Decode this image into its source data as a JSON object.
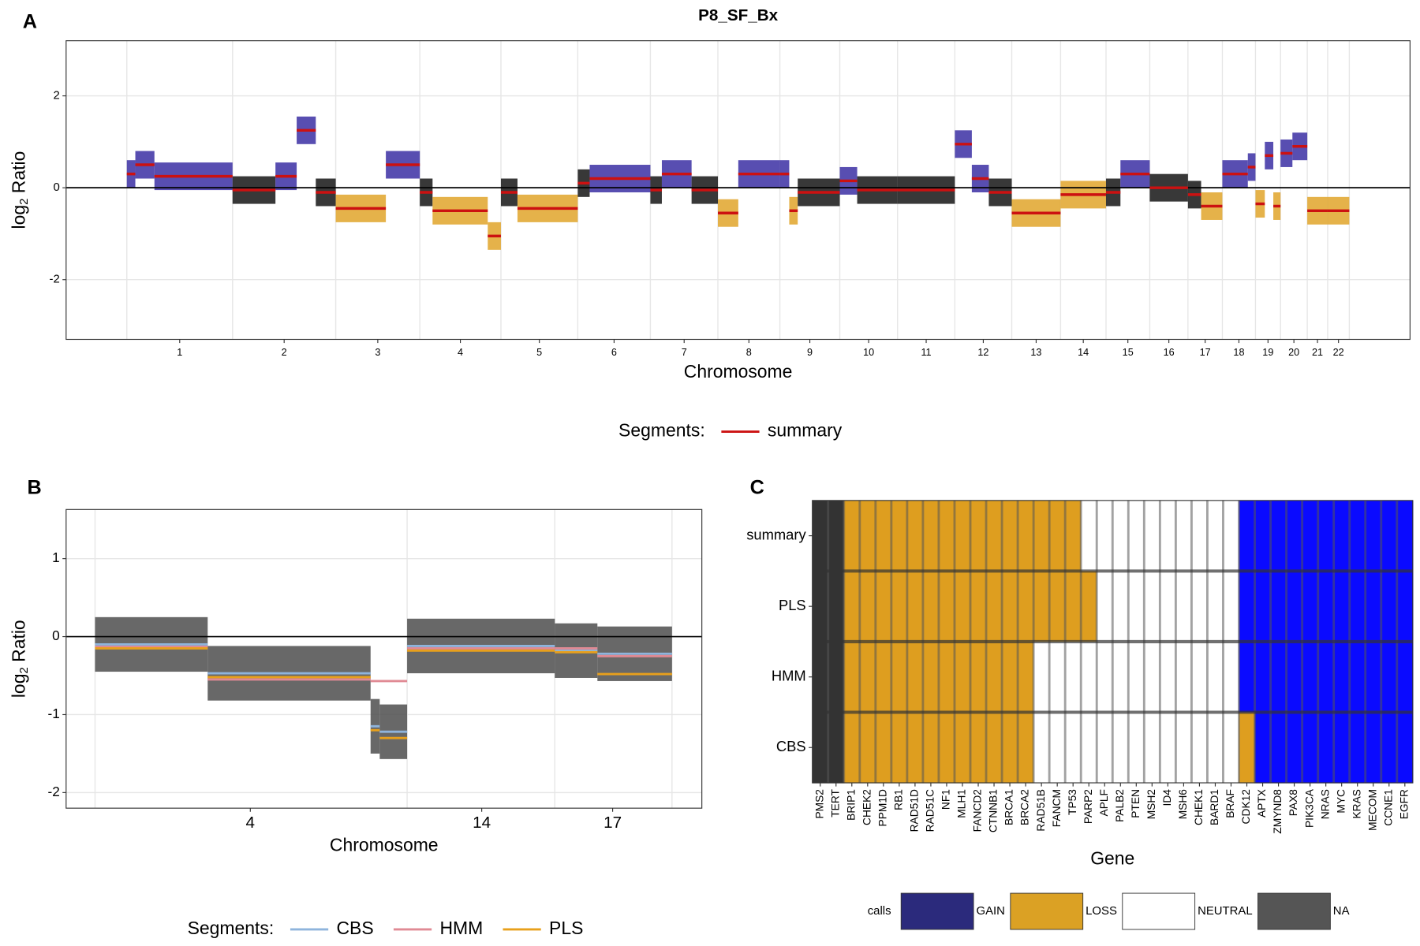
{
  "chart_data": [
    {
      "panel_label": "A",
      "type": "segments",
      "title": "P8_SF_Bx",
      "xlabel": "Chromosome",
      "ylabel": [
        "log",
        "2",
        " Ratio"
      ],
      "xlim": [
        -143,
        3022
      ],
      "ylim": [
        -3.3,
        3.2
      ],
      "yticks": [
        -2,
        0,
        2
      ],
      "hline": 0,
      "grid": true,
      "xticks": [
        {
          "value": 124.5,
          "label": "1"
        },
        {
          "value": 370.5,
          "label": "2"
        },
        {
          "value": 591,
          "label": "3"
        },
        {
          "value": 785.5,
          "label": "4"
        },
        {
          "value": 971.5,
          "label": "5"
        },
        {
          "value": 1147.5,
          "label": "6"
        },
        {
          "value": 1312.5,
          "label": "7"
        },
        {
          "value": 1465,
          "label": "8"
        },
        {
          "value": 1608.5,
          "label": "9"
        },
        {
          "value": 1747,
          "label": "10"
        },
        {
          "value": 1882.5,
          "label": "11"
        },
        {
          "value": 2017,
          "label": "12"
        },
        {
          "value": 2141.5,
          "label": "13"
        },
        {
          "value": 2252.5,
          "label": "14"
        },
        {
          "value": 2357.5,
          "label": "15"
        },
        {
          "value": 2454,
          "label": "16"
        },
        {
          "value": 2539.5,
          "label": "17"
        },
        {
          "value": 2619,
          "label": "18"
        },
        {
          "value": 2687.5,
          "label": "19"
        },
        {
          "value": 2748.5,
          "label": "20"
        },
        {
          "value": 2804,
          "label": "21"
        },
        {
          "value": 2853.5,
          "label": "22"
        }
      ],
      "x_boundaries": [
        0,
        249,
        492,
        690,
        881,
        1062,
        1233,
        1392,
        1538,
        1679,
        1815,
        1950,
        2084,
        2199,
        2306,
        2409,
        2499,
        2580,
        2658,
        2717,
        2780,
        2828,
        2879
      ],
      "point_colors": {
        "GAIN": "#3b2fa3",
        "LOSS": "#e0a52a",
        "NEUTRAL": "#151515"
      },
      "legend_title": "Segments:",
      "legend_position": "bottom",
      "series": [
        {
          "name": "summary",
          "color": "#cc1111",
          "segments": [
            {
              "start": 0,
              "end": 20,
              "value": 0.3,
              "call": "GAIN"
            },
            {
              "start": 20,
              "end": 65,
              "value": 0.5,
              "call": "GAIN"
            },
            {
              "start": 65,
              "end": 249,
              "value": 0.25,
              "call": "GAIN"
            },
            {
              "start": 249,
              "end": 350,
              "value": -0.05,
              "call": "NEUTRAL"
            },
            {
              "start": 350,
              "end": 400,
              "value": 0.25,
              "call": "GAIN"
            },
            {
              "start": 400,
              "end": 445,
              "value": 1.25,
              "call": "GAIN"
            },
            {
              "start": 445,
              "end": 492,
              "value": -0.1,
              "call": "NEUTRAL"
            },
            {
              "start": 492,
              "end": 610,
              "value": -0.45,
              "call": "LOSS"
            },
            {
              "start": 610,
              "end": 690,
              "value": 0.5,
              "call": "GAIN"
            },
            {
              "start": 690,
              "end": 720,
              "value": -0.1,
              "call": "NEUTRAL"
            },
            {
              "start": 720,
              "end": 850,
              "value": -0.5,
              "call": "LOSS"
            },
            {
              "start": 850,
              "end": 881,
              "value": -1.05,
              "call": "LOSS"
            },
            {
              "start": 881,
              "end": 920,
              "value": -0.1,
              "call": "NEUTRAL"
            },
            {
              "start": 920,
              "end": 1062,
              "value": -0.45,
              "call": "LOSS"
            },
            {
              "start": 1062,
              "end": 1090,
              "value": 0.1,
              "call": "NEUTRAL"
            },
            {
              "start": 1090,
              "end": 1233,
              "value": 0.2,
              "call": "GAIN"
            },
            {
              "start": 1233,
              "end": 1260,
              "value": -0.05,
              "call": "NEUTRAL"
            },
            {
              "start": 1260,
              "end": 1330,
              "value": 0.3,
              "call": "GAIN"
            },
            {
              "start": 1330,
              "end": 1392,
              "value": -0.05,
              "call": "NEUTRAL"
            },
            {
              "start": 1392,
              "end": 1440,
              "value": -0.55,
              "call": "LOSS"
            },
            {
              "start": 1440,
              "end": 1538,
              "value": 0.3,
              "call": "GAIN"
            },
            {
              "start": 1538,
              "end": 1560,
              "value": 0.3,
              "call": "GAIN"
            },
            {
              "start": 1560,
              "end": 1580,
              "value": -0.5,
              "call": "LOSS"
            },
            {
              "start": 1580,
              "end": 1679,
              "value": -0.1,
              "call": "NEUTRAL"
            },
            {
              "start": 1679,
              "end": 1720,
              "value": 0.15,
              "call": "GAIN"
            },
            {
              "start": 1720,
              "end": 1815,
              "value": -0.05,
              "call": "NEUTRAL"
            },
            {
              "start": 1815,
              "end": 1950,
              "value": -0.05,
              "call": "NEUTRAL"
            },
            {
              "start": 1950,
              "end": 1990,
              "value": 0.95,
              "call": "GAIN"
            },
            {
              "start": 1990,
              "end": 2030,
              "value": 0.2,
              "call": "GAIN"
            },
            {
              "start": 2030,
              "end": 2084,
              "value": -0.1,
              "call": "NEUTRAL"
            },
            {
              "start": 2084,
              "end": 2199,
              "value": -0.55,
              "call": "LOSS"
            },
            {
              "start": 2199,
              "end": 2306,
              "value": -0.15,
              "call": "LOSS"
            },
            {
              "start": 2306,
              "end": 2340,
              "value": -0.1,
              "call": "NEUTRAL"
            },
            {
              "start": 2340,
              "end": 2409,
              "value": 0.3,
              "call": "GAIN"
            },
            {
              "start": 2409,
              "end": 2499,
              "value": 0,
              "call": "NEUTRAL"
            },
            {
              "start": 2499,
              "end": 2530,
              "value": -0.15,
              "call": "NEUTRAL"
            },
            {
              "start": 2530,
              "end": 2580,
              "value": -0.4,
              "call": "LOSS"
            },
            {
              "start": 2580,
              "end": 2640,
              "value": 0.3,
              "call": "GAIN"
            },
            {
              "start": 2640,
              "end": 2658,
              "value": 0.45,
              "call": "GAIN"
            },
            {
              "start": 2658,
              "end": 2680,
              "value": -0.35,
              "call": "LOSS"
            },
            {
              "start": 2680,
              "end": 2700,
              "value": 0.7,
              "call": "GAIN"
            },
            {
              "start": 2700,
              "end": 2717,
              "value": -0.4,
              "call": "LOSS"
            },
            {
              "start": 2717,
              "end": 2745,
              "value": 0.75,
              "call": "GAIN"
            },
            {
              "start": 2745,
              "end": 2780,
              "value": 0.9,
              "call": "GAIN"
            },
            {
              "start": 2780,
              "end": 2828,
              "value": -0.5,
              "call": "LOSS"
            },
            {
              "start": 2828,
              "end": 2879,
              "value": -0.5,
              "call": "LOSS"
            }
          ]
        }
      ]
    },
    {
      "panel_label": "B",
      "type": "segments",
      "xlabel": "Chromosome",
      "ylabel": [
        "log",
        "2",
        " Ratio"
      ],
      "xlim": [
        -19,
        398.6
      ],
      "ylim": [
        -2.2,
        1.63
      ],
      "yticks": [
        -2,
        -1,
        0,
        1
      ],
      "hline": 0,
      "grid": true,
      "xticks": [
        {
          "value": 102,
          "label": "4"
        },
        {
          "value": 254,
          "label": "14"
        },
        {
          "value": 340,
          "label": "17"
        }
      ],
      "x_boundaries": [
        0,
        205,
        302,
        379
      ],
      "cloud_color": "#4d4d4d",
      "legend_title": "Segments:",
      "legend_position": "bottom",
      "series": [
        {
          "name": "CBS",
          "color": "#8fb4dc",
          "segments": [
            {
              "start": 0,
              "end": 74,
              "value": -0.1
            },
            {
              "start": 74,
              "end": 181,
              "value": -0.47
            },
            {
              "start": 181,
              "end": 187,
              "value": -1.15
            },
            {
              "start": 187,
              "end": 205,
              "value": -1.22
            },
            {
              "start": 205,
              "end": 302,
              "value": -0.12
            },
            {
              "start": 302,
              "end": 330,
              "value": -0.18
            },
            {
              "start": 330,
              "end": 379,
              "value": -0.22
            }
          ]
        },
        {
          "name": "HMM",
          "color": "#e08a94",
          "segments": [
            {
              "start": 0,
              "end": 74,
              "value": -0.13
            },
            {
              "start": 74,
              "end": 181,
              "value": -0.55
            },
            {
              "start": 181,
              "end": 205,
              "value": -0.57
            },
            {
              "start": 205,
              "end": 302,
              "value": -0.15
            },
            {
              "start": 302,
              "end": 330,
              "value": -0.15
            },
            {
              "start": 330,
              "end": 379,
              "value": -0.25
            }
          ]
        },
        {
          "name": "PLS",
          "color": "#e8a01c",
          "segments": [
            {
              "start": 0,
              "end": 74,
              "value": -0.15
            },
            {
              "start": 74,
              "end": 181,
              "value": -0.52
            },
            {
              "start": 181,
              "end": 187,
              "value": -1.2
            },
            {
              "start": 187,
              "end": 205,
              "value": -1.3
            },
            {
              "start": 205,
              "end": 302,
              "value": -0.18
            },
            {
              "start": 302,
              "end": 330,
              "value": -0.2
            },
            {
              "start": 330,
              "end": 379,
              "value": -0.48
            }
          ]
        }
      ]
    },
    {
      "panel_label": "C",
      "type": "heatmap",
      "xlabel": "Gene",
      "categories": [
        "PMS2",
        "TERT",
        "BRIP1",
        "CHEK2",
        "PPM1D",
        "RB1",
        "RAD51D",
        "RAD51C",
        "NF1",
        "MLH1",
        "FANCD2",
        "CTNNB1",
        "BRCA1",
        "BRCA2",
        "RAD51B",
        "FANCM",
        "TP53",
        "PARP2",
        "APLF",
        "PALB2",
        "PTEN",
        "MSH2",
        "ID4",
        "MSH6",
        "CHEK1",
        "BARD1",
        "BRAF",
        "CDK12",
        "APTX",
        "ZMYND8",
        "PAX8",
        "PIK3CA",
        "NRAS",
        "MYC",
        "KRAS",
        "MECOM",
        "CCNE1",
        "EGFR"
      ],
      "rows": [
        "summary",
        "PLS",
        "HMM",
        "CBS"
      ],
      "values": [
        [
          "NA",
          "NA",
          "LOSS",
          "LOSS",
          "LOSS",
          "LOSS",
          "LOSS",
          "LOSS",
          "LOSS",
          "LOSS",
          "LOSS",
          "LOSS",
          "LOSS",
          "LOSS",
          "LOSS",
          "LOSS",
          "LOSS",
          "NEUTRAL",
          "NEUTRAL",
          "NEUTRAL",
          "NEUTRAL",
          "NEUTRAL",
          "NEUTRAL",
          "NEUTRAL",
          "NEUTRAL",
          "NEUTRAL",
          "NEUTRAL",
          "GAIN",
          "GAIN",
          "GAIN",
          "GAIN",
          "GAIN",
          "GAIN",
          "GAIN",
          "GAIN",
          "GAIN",
          "GAIN",
          "GAIN"
        ],
        [
          "NA",
          "NA",
          "LOSS",
          "LOSS",
          "LOSS",
          "LOSS",
          "LOSS",
          "LOSS",
          "LOSS",
          "LOSS",
          "LOSS",
          "LOSS",
          "LOSS",
          "LOSS",
          "LOSS",
          "LOSS",
          "LOSS",
          "LOSS",
          "NEUTRAL",
          "NEUTRAL",
          "NEUTRAL",
          "NEUTRAL",
          "NEUTRAL",
          "NEUTRAL",
          "NEUTRAL",
          "NEUTRAL",
          "NEUTRAL",
          "GAIN",
          "GAIN",
          "GAIN",
          "GAIN",
          "GAIN",
          "GAIN",
          "GAIN",
          "GAIN",
          "GAIN",
          "GAIN",
          "GAIN"
        ],
        [
          "NA",
          "NA",
          "LOSS",
          "LOSS",
          "LOSS",
          "LOSS",
          "LOSS",
          "LOSS",
          "LOSS",
          "LOSS",
          "LOSS",
          "LOSS",
          "LOSS",
          "LOSS",
          "NEUTRAL",
          "NEUTRAL",
          "NEUTRAL",
          "NEUTRAL",
          "NEUTRAL",
          "NEUTRAL",
          "NEUTRAL",
          "NEUTRAL",
          "NEUTRAL",
          "NEUTRAL",
          "NEUTRAL",
          "NEUTRAL",
          "NEUTRAL",
          "GAIN",
          "GAIN",
          "GAIN",
          "GAIN",
          "GAIN",
          "GAIN",
          "GAIN",
          "GAIN",
          "GAIN",
          "GAIN",
          "GAIN"
        ],
        [
          "NA",
          "NA",
          "LOSS",
          "LOSS",
          "LOSS",
          "LOSS",
          "LOSS",
          "LOSS",
          "LOSS",
          "LOSS",
          "LOSS",
          "LOSS",
          "LOSS",
          "LOSS",
          "NEUTRAL",
          "NEUTRAL",
          "NEUTRAL",
          "NEUTRAL",
          "NEUTRAL",
          "NEUTRAL",
          "NEUTRAL",
          "NEUTRAL",
          "NEUTRAL",
          "NEUTRAL",
          "NEUTRAL",
          "NEUTRAL",
          "NEUTRAL",
          "LOSS",
          "GAIN",
          "GAIN",
          "GAIN",
          "GAIN",
          "GAIN",
          "GAIN",
          "GAIN",
          "GAIN",
          "GAIN",
          "GAIN"
        ]
      ],
      "tile_colors": {
        "GAIN": "#0a0aff",
        "LOSS": "#de9e1f",
        "NEUTRAL": "#ffffff",
        "NA": "#333333"
      },
      "legend_title": "calls",
      "legend_position": "bottom",
      "legend": [
        {
          "label": "GAIN",
          "color": "#2b2a7c"
        },
        {
          "label": "LOSS",
          "color": "#dba124"
        },
        {
          "label": "NEUTRAL",
          "color": "#ffffff"
        },
        {
          "label": "NA",
          "color": "#555555"
        }
      ]
    }
  ]
}
